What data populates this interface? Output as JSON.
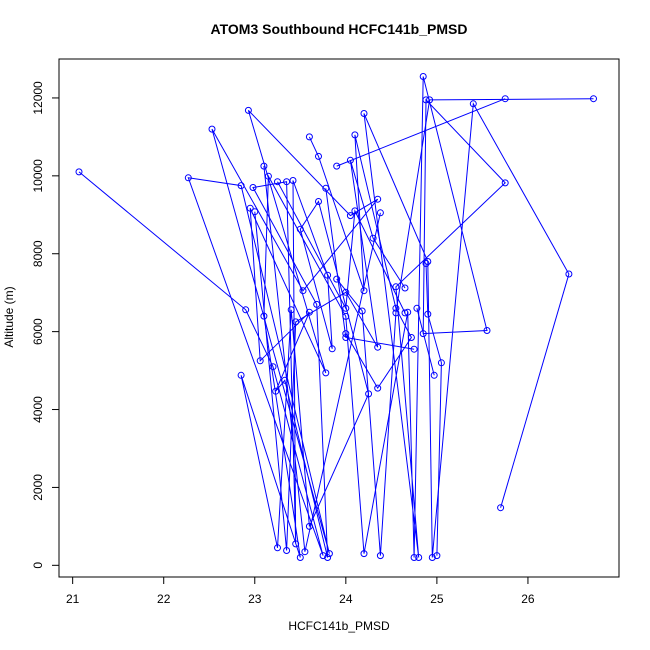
{
  "chart_data": {
    "type": "line",
    "title": "ATOM3 Southbound HCFC141b_PMSD",
    "xlabel": "HCFC141b_PMSD",
    "ylabel": "Altitude (m)",
    "xlim": [
      20.85,
      27.0
    ],
    "ylim": [
      -300,
      13000
    ],
    "xticks": [
      21,
      22,
      23,
      24,
      25,
      26
    ],
    "yticks": [
      0,
      2000,
      4000,
      6000,
      8000,
      10000,
      12000
    ],
    "grid": false,
    "legend": "none",
    "line_color": "#0000ff",
    "marker": "open-circle",
    "series": [
      {
        "points": [
          [
            21.07,
            10100
          ],
          [
            22.9,
            6560
          ],
          [
            23.2,
            5100
          ],
          [
            23.75,
            250
          ],
          [
            22.27,
            9950
          ],
          [
            22.85,
            9750
          ],
          [
            23.82,
            300
          ],
          [
            22.53,
            11200
          ],
          [
            23.53,
            7050
          ],
          [
            24.35,
            9400
          ],
          [
            24.05,
            8980
          ],
          [
            22.93,
            11680
          ],
          [
            23.78,
            4940
          ],
          [
            22.95,
            9170
          ],
          [
            23.06,
            5250
          ],
          [
            23.6,
            6500
          ],
          [
            23.23,
            4470
          ],
          [
            23.33,
            4750
          ],
          [
            23.8,
            200
          ],
          [
            23.68,
            6700
          ],
          [
            22.98,
            9700
          ],
          [
            23.35,
            9850
          ],
          [
            23.45,
            550
          ],
          [
            23.42,
            9880
          ],
          [
            23.8,
            7450
          ],
          [
            23.85,
            5560
          ],
          [
            23.5,
            8630
          ],
          [
            23.7,
            9340
          ],
          [
            24.25,
            4400
          ],
          [
            23.6,
            1000
          ],
          [
            23.4,
            6560
          ],
          [
            23.25,
            450
          ],
          [
            22.85,
            4880
          ],
          [
            23.5,
            200
          ],
          [
            23.1,
            6400
          ],
          [
            23.15,
            9990
          ],
          [
            24.0,
            6390
          ],
          [
            24.2,
            300
          ],
          [
            24.68,
            6500
          ],
          [
            24.75,
            200
          ],
          [
            24.85,
            12550
          ],
          [
            25.55,
            6030
          ],
          [
            24.85,
            5950
          ],
          [
            24.88,
            11950
          ],
          [
            25.75,
            9820
          ],
          [
            24.55,
            7150
          ],
          [
            24.8,
            200
          ],
          [
            24.2,
            11600
          ],
          [
            24.9,
            7800
          ],
          [
            24.95,
            200
          ],
          [
            25.4,
            11850
          ],
          [
            26.45,
            7480
          ],
          [
            25.7,
            1480
          ]
        ]
      },
      {
        "points": [
          [
            23.9,
            7350
          ],
          [
            24.18,
            6530
          ],
          [
            24.38,
            250
          ],
          [
            24.55,
            6480
          ],
          [
            24.92,
            11950
          ],
          [
            26.72,
            11980
          ]
        ]
      },
      {
        "points": [
          [
            23.0,
            9080
          ],
          [
            23.35,
            380
          ],
          [
            23.45,
            6250
          ],
          [
            24.0,
            7010
          ],
          [
            24.35,
            5600
          ],
          [
            24.05,
            10400
          ],
          [
            24.3,
            8400
          ],
          [
            24.65,
            7120
          ]
        ]
      },
      {
        "points": [
          [
            23.6,
            11000
          ],
          [
            23.7,
            10500
          ],
          [
            24.2,
            7050
          ],
          [
            24.1,
            11050
          ],
          [
            24.55,
            6600
          ],
          [
            24.72,
            5850
          ],
          [
            24.35,
            4550
          ],
          [
            24.0,
            5950
          ]
        ]
      },
      {
        "points": [
          [
            23.25,
            9850
          ],
          [
            24.0,
            6600
          ],
          [
            24.1,
            9100
          ],
          [
            24.65,
            6480
          ]
        ]
      },
      {
        "points": [
          [
            23.78,
            9680
          ],
          [
            24.0,
            5850
          ],
          [
            24.75,
            5550
          ]
        ]
      },
      {
        "points": [
          [
            23.1,
            10250
          ],
          [
            23.55,
            350
          ],
          [
            24.38,
            9050
          ]
        ]
      },
      {
        "points": [
          [
            24.88,
            7750
          ],
          [
            24.9,
            6450
          ],
          [
            25.05,
            5200
          ],
          [
            25.0,
            250
          ]
        ]
      },
      {
        "points": [
          [
            24.78,
            6600
          ],
          [
            24.97,
            4880
          ]
        ]
      },
      {
        "points": [
          [
            23.9,
            10250
          ],
          [
            25.75,
            11980
          ]
        ]
      }
    ]
  }
}
